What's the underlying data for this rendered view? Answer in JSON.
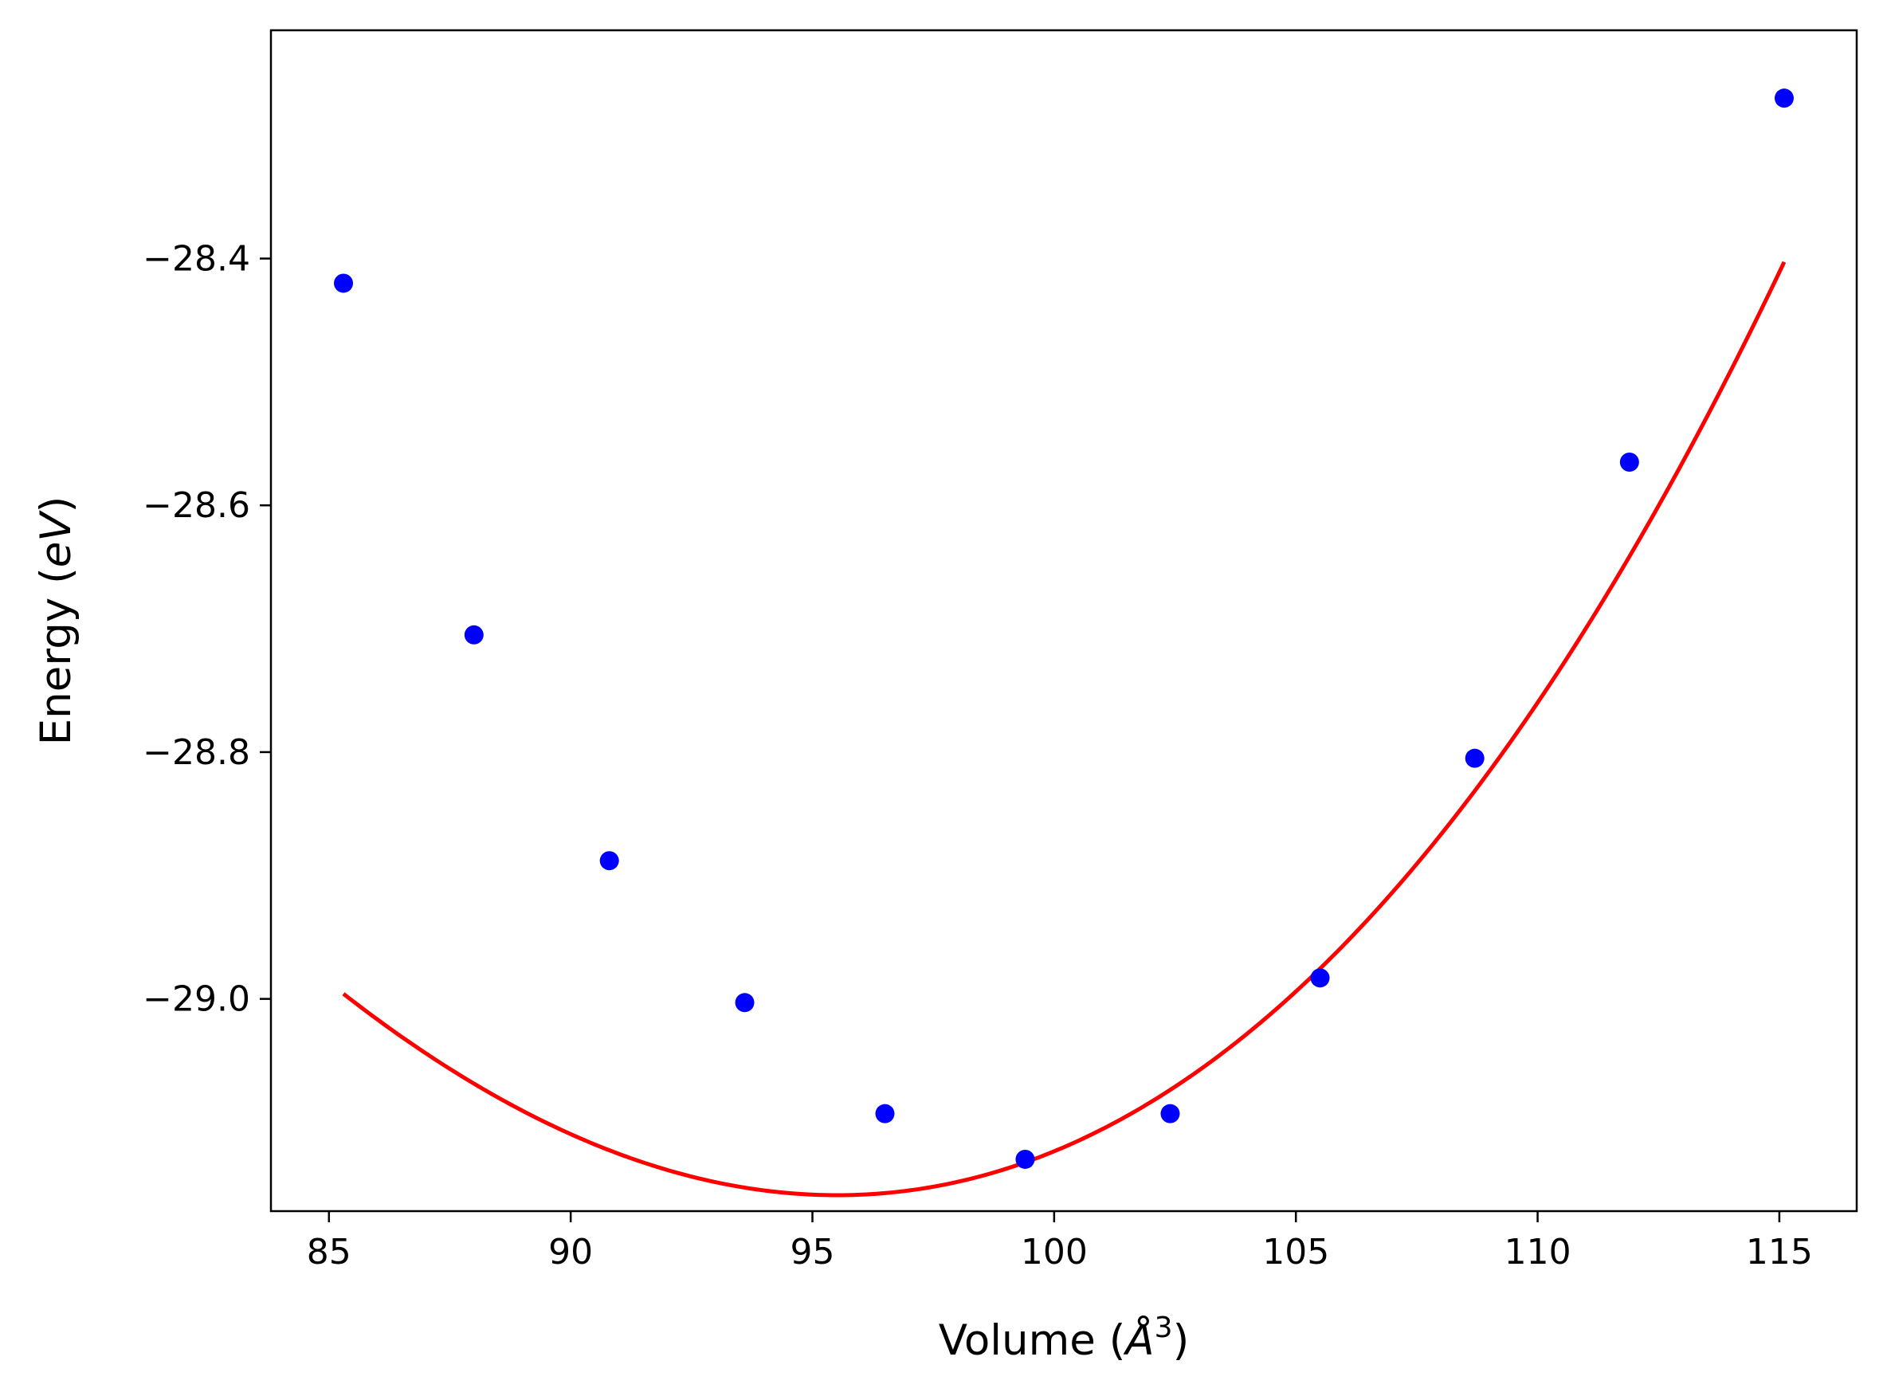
{
  "chart_data": {
    "type": "scatter",
    "xlabel_main": "Volume (",
    "xlabel_unit": "Å",
    "xlabel_power": "3",
    "xlabel_close": ")",
    "ylabel_main": "Energy (",
    "ylabel_unit": "eV",
    "ylabel_close": ")",
    "xlim": [
      83.8,
      116.6
    ],
    "ylim": [
      -29.172,
      -28.215
    ],
    "x_ticks": [
      85,
      90,
      95,
      100,
      105,
      110,
      115
    ],
    "x_tick_labels": [
      "85",
      "90",
      "95",
      "100",
      "105",
      "110",
      "115"
    ],
    "y_ticks": [
      -28.4,
      -28.6,
      -28.8,
      -29.0
    ],
    "y_tick_labels": [
      "−28.4",
      "−28.6",
      "−28.8",
      "−29.0"
    ],
    "grid": false,
    "series": [
      {
        "type": "scatter",
        "color": "#0000ff",
        "x": [
          85.3,
          88.0,
          90.8,
          93.6,
          96.5,
          99.4,
          102.4,
          105.5,
          108.7,
          111.9,
          115.1
        ],
        "y": [
          -28.42,
          -28.705,
          -28.888,
          -29.003,
          -29.093,
          -29.13,
          -29.093,
          -28.983,
          -28.805,
          -28.565,
          -28.27
        ]
      },
      {
        "type": "line",
        "color": "#ff0000",
        "fit": {
          "form": "cubic",
          "x0": 100,
          "c0": -29.1235,
          "c1": 0.016125,
          "c2": 0.0018875,
          "c3": 1.36e-05
        },
        "x_range": [
          85.3,
          115.1
        ]
      }
    ]
  }
}
